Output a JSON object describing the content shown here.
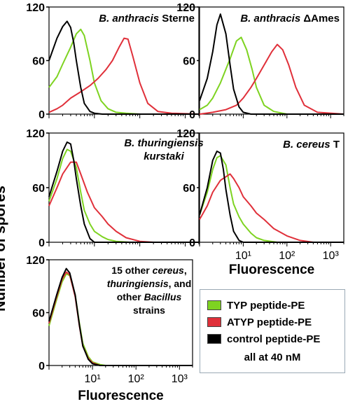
{
  "figure": {
    "ylabel": "Number of spores",
    "xlabel": "Fluorescence",
    "legend_note": "all at 40 nM"
  },
  "legend": [
    {
      "label": "TYP peptide-PE",
      "color": "#7ed321"
    },
    {
      "label": "ATYP peptide-PE",
      "color": "#e0303a"
    },
    {
      "label": "control peptide-PE",
      "color": "#000000"
    }
  ],
  "chart_data": [
    {
      "type": "line",
      "title_italic": "B. anthracis",
      "title_rest": " Sterne",
      "xscale": "log",
      "xlim": [
        1,
        2000
      ],
      "ylim": [
        0,
        120
      ],
      "yticks": [
        0,
        60,
        120
      ],
      "xtick_labels_shown": false,
      "series": [
        {
          "name": "TYP peptide-PE",
          "color": "#7ed321",
          "x": [
            1,
            1.5,
            2,
            3,
            4,
            5,
            6,
            8,
            10,
            14,
            20,
            30,
            50,
            100,
            2000
          ],
          "y": [
            30,
            42,
            56,
            75,
            90,
            95,
            88,
            60,
            35,
            15,
            6,
            2,
            1,
            0,
            0
          ]
        },
        {
          "name": "ATYP peptide-PE",
          "color": "#e0303a",
          "x": [
            1,
            1.5,
            2,
            3,
            5,
            8,
            12,
            18,
            25,
            35,
            45,
            55,
            70,
            100,
            150,
            250,
            500,
            2000
          ],
          "y": [
            2,
            6,
            10,
            18,
            25,
            32,
            40,
            50,
            60,
            75,
            85,
            84,
            65,
            35,
            12,
            3,
            1,
            0
          ]
        },
        {
          "name": "control peptide-PE",
          "color": "#000000",
          "x": [
            1,
            1.5,
            2,
            2.5,
            3,
            3.5,
            4,
            5,
            6,
            8,
            10,
            15,
            2000
          ],
          "y": [
            60,
            85,
            98,
            104,
            97,
            80,
            60,
            30,
            12,
            3,
            1,
            0,
            0
          ]
        }
      ]
    },
    {
      "type": "line",
      "title_italic": "B. anthracis",
      "title_rest": " ΔAmes",
      "xscale": "log",
      "xlim": [
        1,
        2000
      ],
      "ylim": [
        0,
        120
      ],
      "yticks": [
        0,
        60,
        120
      ],
      "xtick_labels_shown": false,
      "series": [
        {
          "name": "TYP peptide-PE",
          "color": "#7ed321",
          "x": [
            1,
            1.5,
            2,
            3,
            5,
            7,
            9,
            12,
            16,
            20,
            30,
            50,
            100,
            2000
          ],
          "y": [
            5,
            10,
            18,
            35,
            62,
            82,
            86,
            72,
            50,
            30,
            10,
            3,
            0,
            0
          ]
        },
        {
          "name": "ATYP peptide-PE",
          "color": "#e0303a",
          "x": [
            1,
            2,
            4,
            7,
            10,
            15,
            20,
            30,
            45,
            60,
            80,
            110,
            160,
            250,
            500,
            2000
          ],
          "y": [
            0,
            2,
            5,
            10,
            18,
            30,
            40,
            55,
            70,
            78,
            72,
            55,
            30,
            10,
            2,
            0
          ]
        },
        {
          "name": "control peptide-PE",
          "color": "#000000",
          "x": [
            1,
            1.5,
            2,
            2.5,
            3,
            4,
            5,
            6,
            8,
            10,
            15,
            2000
          ],
          "y": [
            15,
            40,
            70,
            100,
            112,
            90,
            55,
            28,
            8,
            2,
            0,
            0
          ]
        }
      ]
    },
    {
      "type": "line",
      "title_italic": "B. thuringiensis",
      "title_line2_italic": "kurstaki",
      "xscale": "log",
      "xlim": [
        1,
        2000
      ],
      "ylim": [
        0,
        120
      ],
      "yticks": [
        0,
        60,
        120
      ],
      "xtick_labels_shown": false,
      "series": [
        {
          "name": "TYP peptide-PE",
          "color": "#7ed321",
          "x": [
            1,
            1.5,
            2,
            2.5,
            3,
            4,
            5,
            6,
            8,
            10,
            15,
            20,
            30,
            60,
            2000
          ],
          "y": [
            45,
            70,
            92,
            102,
            100,
            82,
            55,
            35,
            20,
            12,
            6,
            3,
            1,
            0,
            0
          ]
        },
        {
          "name": "ATYP peptide-PE",
          "color": "#e0303a",
          "x": [
            1,
            1.5,
            2,
            3,
            4,
            5,
            7,
            10,
            15,
            20,
            30,
            50,
            100,
            200,
            2000
          ],
          "y": [
            40,
            60,
            75,
            88,
            88,
            75,
            55,
            38,
            28,
            20,
            12,
            5,
            1,
            0,
            0
          ]
        },
        {
          "name": "control peptide-PE",
          "color": "#000000",
          "x": [
            1,
            1.5,
            2,
            2.5,
            3,
            3.5,
            4,
            5,
            6,
            8,
            10,
            2000
          ],
          "y": [
            50,
            78,
            100,
            110,
            108,
            90,
            70,
            40,
            20,
            4,
            0,
            0
          ]
        }
      ]
    },
    {
      "type": "line",
      "title_italic": "B. cereus",
      "title_rest": " T",
      "xscale": "log",
      "xlim": [
        1,
        2000
      ],
      "ylim": [
        0,
        120
      ],
      "yticks": [
        0,
        60,
        120
      ],
      "xtick_labels": [
        "10¹",
        "10²",
        "10³"
      ],
      "xtick_values": [
        10,
        100,
        1000
      ],
      "series": [
        {
          "name": "TYP peptide-PE",
          "color": "#7ed321",
          "x": [
            1,
            1.5,
            2,
            2.5,
            3,
            4,
            5,
            6,
            8,
            10,
            15,
            20,
            30,
            60,
            2000
          ],
          "y": [
            30,
            55,
            80,
            93,
            95,
            85,
            60,
            42,
            28,
            20,
            10,
            5,
            2,
            0,
            0
          ]
        },
        {
          "name": "ATYP peptide-PE",
          "color": "#e0303a",
          "x": [
            1,
            1.5,
            2,
            3,
            4,
            5,
            6,
            8,
            10,
            15,
            20,
            30,
            50,
            100,
            200,
            400,
            2000
          ],
          "y": [
            25,
            40,
            55,
            68,
            72,
            75,
            70,
            60,
            50,
            40,
            32,
            25,
            15,
            7,
            2,
            0,
            0
          ]
        },
        {
          "name": "control peptide-PE",
          "color": "#000000",
          "x": [
            1,
            1.5,
            2,
            2.5,
            3,
            3.5,
            4,
            5,
            6,
            8,
            10,
            2000
          ],
          "y": [
            30,
            60,
            90,
            100,
            98,
            80,
            58,
            30,
            12,
            2,
            0,
            0
          ]
        }
      ]
    },
    {
      "type": "line",
      "title_lines": [
        {
          "text": "15 other ",
          "italic": false
        },
        {
          "text": "cereus",
          "italic": true
        },
        {
          "text": ",",
          "italic": false
        }
      ],
      "title_full": [
        "15 other cereus,",
        "thuringiensis, and",
        "other Bacillus",
        "strains"
      ],
      "xscale": "log",
      "xlim": [
        1,
        2000
      ],
      "ylim": [
        0,
        120
      ],
      "yticks": [
        0,
        60,
        120
      ],
      "xtick_labels": [
        "10¹",
        "10²",
        "10³"
      ],
      "xtick_values": [
        10,
        100,
        1000
      ],
      "series": [
        {
          "name": "TYP peptide-PE",
          "color": "#7ed321",
          "x": [
            1,
            1.5,
            2,
            2.5,
            3,
            4,
            5,
            6,
            8,
            10,
            15,
            20,
            30,
            2000
          ],
          "y": [
            45,
            75,
            95,
            104,
            102,
            80,
            48,
            25,
            10,
            4,
            1,
            0,
            0,
            0
          ]
        },
        {
          "name": "ATYP peptide-PE",
          "color": "#e0303a",
          "x": [
            1,
            1.5,
            2,
            2.5,
            3,
            4,
            5,
            6,
            8,
            10,
            15,
            2000
          ],
          "y": [
            48,
            78,
            98,
            106,
            103,
            78,
            45,
            22,
            8,
            3,
            0,
            0
          ]
        },
        {
          "name": "control peptide-PE",
          "color": "#000000",
          "x": [
            1,
            1.5,
            2,
            2.5,
            3,
            4,
            5,
            6,
            8,
            10,
            15,
            2000
          ],
          "y": [
            50,
            80,
            100,
            110,
            105,
            80,
            46,
            22,
            7,
            2,
            0,
            0
          ]
        }
      ]
    }
  ]
}
